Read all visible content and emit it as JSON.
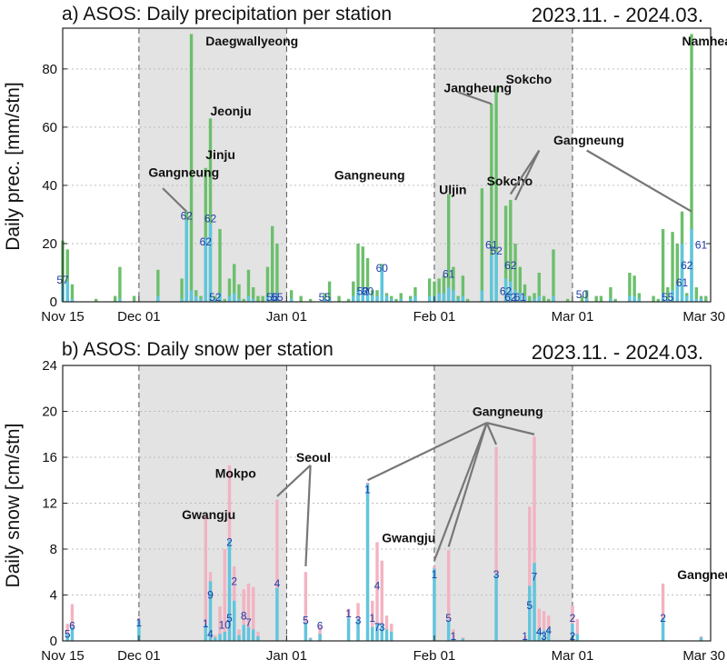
{
  "chart_data": [
    {
      "type": "bar",
      "title": "a) ASOS: Daily precipitation per station",
      "period": "2023.11. - 2024.03.",
      "ylabel": "Daily prec. [mm/stn]",
      "ylim": [
        0,
        94
      ],
      "yticks": [
        "0",
        "20",
        "40",
        "60",
        "80"
      ],
      "xticks": [
        "Nov 15",
        "Dec 01",
        "Jan 01",
        "Feb 01",
        "Mar 01",
        "Mar 30"
      ],
      "shaded_periods": [
        [
          "Dec 01",
          "Jan 01"
        ],
        [
          "Feb 01",
          "Mar 01"
        ]
      ],
      "colors": {
        "total": "#6cbf6c",
        "part": "#5fc6de",
        "label": "#1f3ea8"
      },
      "series": [
        {
          "name": "total",
          "x": [
            "11-15",
            "11-16",
            "11-17",
            "11-22",
            "11-26",
            "11-27",
            "11-30",
            "12-05",
            "12-10",
            "12-11",
            "12-12",
            "12-13",
            "12-14",
            "12-15",
            "12-16",
            "12-17",
            "12-18",
            "12-19",
            "12-20",
            "12-21",
            "12-22",
            "12-23",
            "12-24",
            "12-25",
            "12-26",
            "12-27",
            "12-28",
            "12-29",
            "12-30",
            "01-02",
            "01-04",
            "01-06",
            "01-09",
            "01-10",
            "01-12",
            "01-14",
            "01-15",
            "01-16",
            "01-17",
            "01-18",
            "01-19",
            "01-20",
            "01-21",
            "01-22",
            "01-23",
            "01-24",
            "01-25",
            "01-27",
            "01-28",
            "01-31",
            "02-01",
            "02-02",
            "02-03",
            "02-04",
            "02-05",
            "02-06",
            "02-07",
            "02-08",
            "02-11",
            "02-13",
            "02-14",
            "02-16",
            "02-17",
            "02-18",
            "02-19",
            "02-20",
            "02-21",
            "02-22",
            "02-23",
            "02-24",
            "02-25",
            "02-26",
            "02-29",
            "03-03",
            "03-04",
            "03-06",
            "03-07",
            "03-09",
            "03-10",
            "03-13",
            "03-14",
            "03-15",
            "03-18",
            "03-19",
            "03-20",
            "03-21",
            "03-22",
            "03-23",
            "03-24",
            "03-25",
            "03-26",
            "03-27",
            "03-28",
            "03-29"
          ],
          "values": [
            21,
            18,
            6,
            1,
            2,
            12,
            2,
            11,
            8,
            31,
            92,
            4,
            2,
            46,
            63,
            2,
            25,
            1,
            8,
            13,
            6,
            1,
            11,
            5,
            2,
            2,
            12,
            26,
            20,
            4,
            2,
            1,
            3,
            7,
            2,
            1,
            7,
            20,
            19,
            15,
            4,
            4,
            13,
            3,
            2,
            1,
            3,
            2,
            5,
            8,
            7,
            8,
            9,
            37,
            12,
            2,
            9,
            1,
            39,
            68,
            74,
            33,
            35,
            20,
            12,
            6,
            2,
            3,
            10,
            2,
            1,
            18,
            1,
            2,
            4,
            2,
            2,
            5,
            1,
            10,
            9,
            3,
            2,
            1,
            25,
            5,
            24,
            20,
            31,
            3,
            92,
            5,
            2,
            2
          ]
        },
        {
          "name": "part",
          "x": [
            "11-15",
            "11-16",
            "11-17",
            "11-22",
            "11-26",
            "11-27",
            "11-30",
            "12-05",
            "12-10",
            "12-11",
            "12-12",
            "12-13",
            "12-14",
            "12-15",
            "12-16",
            "12-17",
            "12-18",
            "12-19",
            "12-20",
            "12-21",
            "12-22",
            "12-23",
            "12-24",
            "12-25",
            "12-26",
            "12-27",
            "12-28",
            "12-29",
            "12-30",
            "01-02",
            "01-04",
            "01-06",
            "01-09",
            "01-10",
            "01-12",
            "01-14",
            "01-15",
            "01-16",
            "01-17",
            "01-18",
            "01-19",
            "01-20",
            "01-21",
            "01-22",
            "01-23",
            "01-24",
            "01-25",
            "01-27",
            "01-28",
            "01-31",
            "02-01",
            "02-02",
            "02-03",
            "02-04",
            "02-05",
            "02-06",
            "02-07",
            "02-08",
            "02-11",
            "02-13",
            "02-14",
            "02-16",
            "02-17",
            "02-18",
            "02-19",
            "02-20",
            "02-21",
            "02-22",
            "02-23",
            "02-24",
            "02-25",
            "02-26",
            "02-29",
            "03-03",
            "03-04",
            "03-06",
            "03-07",
            "03-09",
            "03-10",
            "03-13",
            "03-14",
            "03-15",
            "03-18",
            "03-19",
            "03-20",
            "03-21",
            "03-22",
            "03-23",
            "03-24",
            "03-25",
            "03-26",
            "03-27",
            "03-28",
            "03-29"
          ],
          "values": [
            6,
            7,
            1,
            0,
            0,
            1,
            0,
            2,
            1,
            28,
            4,
            2,
            1,
            22,
            27,
            1,
            3,
            0,
            2,
            3,
            1,
            0,
            2,
            1,
            0,
            0,
            2,
            3,
            3,
            1,
            0,
            0,
            1,
            1,
            0,
            0,
            2,
            4,
            5,
            4,
            2,
            2,
            12,
            2,
            1,
            0,
            1,
            1,
            2,
            2,
            2,
            3,
            3,
            5,
            4,
            1,
            2,
            0,
            4,
            16,
            17,
            8,
            7,
            4,
            3,
            2,
            0,
            1,
            2,
            0,
            0,
            2,
            0,
            0,
            1,
            0,
            0,
            1,
            0,
            2,
            2,
            1,
            0,
            0,
            3,
            1,
            4,
            6,
            20,
            2,
            25,
            1,
            1,
            0
          ]
        }
      ],
      "bar_labels": [
        {
          "x": "11-15",
          "y": 6,
          "text": "57"
        },
        {
          "x": "12-11",
          "y": 28,
          "text": "62"
        },
        {
          "x": "12-16",
          "y": 27,
          "text": "62"
        },
        {
          "x": "12-15",
          "y": 19,
          "text": "62"
        },
        {
          "x": "12-17",
          "y": 0,
          "text": "52"
        },
        {
          "x": "12-29",
          "y": 0,
          "text": "56"
        },
        {
          "x": "12-30",
          "y": 0,
          "text": "55"
        },
        {
          "x": "01-09",
          "y": 0,
          "text": "55"
        },
        {
          "x": "01-17",
          "y": 2,
          "text": "52"
        },
        {
          "x": "01-18",
          "y": 2,
          "text": "80"
        },
        {
          "x": "01-21",
          "y": 10,
          "text": "60"
        },
        {
          "x": "02-04",
          "y": 8,
          "text": "61"
        },
        {
          "x": "02-13",
          "y": 18,
          "text": "61"
        },
        {
          "x": "02-14",
          "y": 16,
          "text": "52"
        },
        {
          "x": "02-17",
          "y": 11,
          "text": "62"
        },
        {
          "x": "02-16",
          "y": 2,
          "text": "62"
        },
        {
          "x": "02-17",
          "y": 0,
          "text": "62"
        },
        {
          "x": "02-19",
          "y": 0,
          "text": "61"
        },
        {
          "x": "03-03",
          "y": 1,
          "text": "50"
        },
        {
          "x": "03-21",
          "y": 0,
          "text": "55"
        },
        {
          "x": "03-25",
          "y": 11,
          "text": "62"
        },
        {
          "x": "03-24",
          "y": 5,
          "text": "61"
        },
        {
          "x": "03-28",
          "y": 18,
          "text": "61"
        }
      ],
      "annotations": [
        {
          "text": "Daegwallyeong",
          "x": "12-15",
          "y": 88
        },
        {
          "text": "Jeonju",
          "x": "12-16",
          "y": 64
        },
        {
          "text": "Jinju",
          "x": "12-15",
          "y": 49
        },
        {
          "text": "Gangneung",
          "x": "12-03",
          "y": 43
        },
        {
          "text": "Gangneung",
          "x": "01-11",
          "y": 42
        },
        {
          "text": "Uljin",
          "x": "02-02",
          "y": 37
        },
        {
          "text": "Jangheung",
          "x": "02-03",
          "y": 72
        },
        {
          "text": "Sokcho",
          "x": "02-16",
          "y": 75
        },
        {
          "text": "Sokcho",
          "x": "02-12",
          "y": 40
        },
        {
          "text": "Gangneung",
          "x": "02-26",
          "y": 54
        },
        {
          "text": "Namhea",
          "x": "03-24",
          "y": 88
        }
      ]
    },
    {
      "type": "bar",
      "title": "b) ASOS: Daily snow per station",
      "period": "2023.11. - 2024.03.",
      "ylabel": "Daily snow [cm/stn]",
      "ylim": [
        0,
        24
      ],
      "yticks": [
        "0",
        "4",
        "8",
        "12",
        "16",
        "20",
        "24"
      ],
      "xticks": [
        "Nov 15",
        "Dec 01",
        "Jan 01",
        "Feb 01",
        "Mar 01",
        "Mar 30"
      ],
      "shaded_periods": [
        [
          "Dec 01",
          "Jan 01"
        ],
        [
          "Feb 01",
          "Mar 01"
        ]
      ],
      "colors": {
        "total": "#f2b3c2",
        "part": "#5fc6de",
        "label": "#1f3ea8"
      },
      "series": [
        {
          "name": "total",
          "x": [
            "11-16",
            "11-17",
            "12-01",
            "12-15",
            "12-16",
            "12-17",
            "12-18",
            "12-19",
            "12-20",
            "12-21",
            "12-22",
            "12-23",
            "12-24",
            "12-25",
            "12-26",
            "12-30",
            "01-05",
            "01-06",
            "01-08",
            "01-14",
            "01-16",
            "01-18",
            "01-19",
            "01-20",
            "01-21",
            "01-22",
            "01-23",
            "02-01",
            "02-04",
            "02-05",
            "02-07",
            "02-14",
            "02-20",
            "02-21",
            "02-22",
            "02-23",
            "02-24",
            "02-25",
            "03-01",
            "03-02",
            "03-20",
            "03-28"
          ],
          "values": [
            1.5,
            3.2,
            2,
            11,
            6,
            0.5,
            3,
            8,
            15.3,
            6.5,
            1,
            4.5,
            5,
            4.7,
            0.8,
            12.3,
            6,
            0.3,
            1.3,
            2.8,
            3.3,
            13.8,
            3.5,
            8.6,
            7,
            2.2,
            1.5,
            6.5,
            7.9,
            1,
            0.3,
            16.9,
            0.4,
            11.7,
            17.8,
            2.8,
            2.6,
            2.2,
            3.1,
            1.9,
            5,
            0.4
          ]
        },
        {
          "name": "part",
          "x": [
            "11-16",
            "11-17",
            "12-01",
            "12-15",
            "12-16",
            "12-17",
            "12-18",
            "12-19",
            "12-20",
            "12-21",
            "12-22",
            "12-23",
            "12-24",
            "12-25",
            "12-26",
            "12-30",
            "01-05",
            "01-06",
            "01-08",
            "01-14",
            "01-16",
            "01-18",
            "01-19",
            "01-20",
            "01-21",
            "01-22",
            "01-23",
            "02-01",
            "02-04",
            "02-05",
            "02-07",
            "02-14",
            "02-20",
            "02-21",
            "02-22",
            "02-23",
            "02-24",
            "02-25",
            "03-01",
            "03-02",
            "03-20",
            "03-28"
          ],
          "values": [
            0.6,
            1.2,
            1.8,
            1.4,
            5.2,
            0.3,
            0.6,
            0.8,
            8.8,
            3.5,
            0.5,
            1.4,
            1.2,
            1,
            0.4,
            4.6,
            1.6,
            0.2,
            0.6,
            2,
            1.9,
            13.7,
            1.2,
            1.5,
            1.4,
            1,
            0.8,
            6.3,
            1.8,
            0.2,
            0.2,
            5.8,
            0.2,
            4.8,
            6.8,
            1,
            0.9,
            1.1,
            1.5,
            0.6,
            2,
            0.3
          ]
        }
      ],
      "bar_labels": [
        {
          "x": "11-16",
          "y": 0.2,
          "text": "5"
        },
        {
          "x": "11-17",
          "y": 0.9,
          "text": "6"
        },
        {
          "x": "12-01",
          "y": 1.2,
          "text": "1"
        },
        {
          "x": "12-15",
          "y": 1.1,
          "text": "1"
        },
        {
          "x": "12-16",
          "y": 3.6,
          "text": "9"
        },
        {
          "x": "12-16",
          "y": 0.2,
          "text": "4"
        },
        {
          "x": "12-19",
          "y": 1.0,
          "text": "10"
        },
        {
          "x": "12-20",
          "y": 1.6,
          "text": "5"
        },
        {
          "x": "12-20",
          "y": 8.2,
          "text": "2"
        },
        {
          "x": "12-21",
          "y": 4.8,
          "text": "2"
        },
        {
          "x": "12-23",
          "y": 1.8,
          "text": "8"
        },
        {
          "x": "12-24",
          "y": 1.2,
          "text": "7"
        },
        {
          "x": "12-30",
          "y": 4.6,
          "text": "4"
        },
        {
          "x": "01-05",
          "y": 1.4,
          "text": "5"
        },
        {
          "x": "01-08",
          "y": 0.9,
          "text": "6"
        },
        {
          "x": "01-14",
          "y": 2.0,
          "text": "1"
        },
        {
          "x": "01-16",
          "y": 1.4,
          "text": "3"
        },
        {
          "x": "01-18",
          "y": 12.8,
          "text": "1"
        },
        {
          "x": "01-19",
          "y": 1.6,
          "text": "1"
        },
        {
          "x": "01-20",
          "y": 4.4,
          "text": "4"
        },
        {
          "x": "01-20",
          "y": 0.8,
          "text": "7"
        },
        {
          "x": "01-21",
          "y": 0.8,
          "text": "3"
        },
        {
          "x": "02-01",
          "y": 5.4,
          "text": "1"
        },
        {
          "x": "02-04",
          "y": 1.6,
          "text": "5"
        },
        {
          "x": "02-05",
          "y": 0,
          "text": "1"
        },
        {
          "x": "02-14",
          "y": 5.4,
          "text": "3"
        },
        {
          "x": "02-20",
          "y": 0,
          "text": "1"
        },
        {
          "x": "02-21",
          "y": 2.7,
          "text": "5"
        },
        {
          "x": "02-22",
          "y": 5.2,
          "text": "7"
        },
        {
          "x": "02-23",
          "y": 0.4,
          "text": "4"
        },
        {
          "x": "02-24",
          "y": 0,
          "text": "3"
        },
        {
          "x": "02-25",
          "y": 0.5,
          "text": "4"
        },
        {
          "x": "03-01",
          "y": 1.6,
          "text": "2"
        },
        {
          "x": "03-01",
          "y": 0,
          "text": "2"
        },
        {
          "x": "03-20",
          "y": 1.6,
          "text": "2"
        }
      ],
      "annotations": [
        {
          "text": "Gwangju",
          "x": "12-10",
          "y": 10.6
        },
        {
          "text": "Mokpo",
          "x": "12-17",
          "y": 14.2
        },
        {
          "text": "Seoul",
          "x": "01-03",
          "y": 15.6
        },
        {
          "text": "Gwangju",
          "x": "01-21",
          "y": 8.6
        },
        {
          "text": "Gangneung",
          "x": "02-09",
          "y": 19.6
        },
        {
          "text": "Gangneung",
          "x": "03-23",
          "y": 5.4
        }
      ]
    }
  ]
}
